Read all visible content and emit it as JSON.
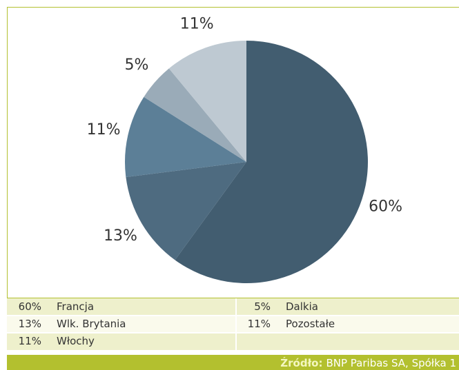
{
  "chart_data": {
    "type": "pie",
    "categories": [
      "Francja",
      "Wlk. Brytania",
      "Włochy",
      "Dalkia",
      "Pozostałe"
    ],
    "values": [
      60,
      13,
      11,
      5,
      11
    ],
    "value_labels": [
      "60%",
      "13%",
      "11%",
      "5%",
      "11%"
    ],
    "colors": [
      "#425d70",
      "#4e6b80",
      "#5c7f97",
      "#9aabb8",
      "#bec9d2"
    ],
    "source_label": "Źródło:",
    "source": "BNP Paribas SA, Spółka 1"
  }
}
